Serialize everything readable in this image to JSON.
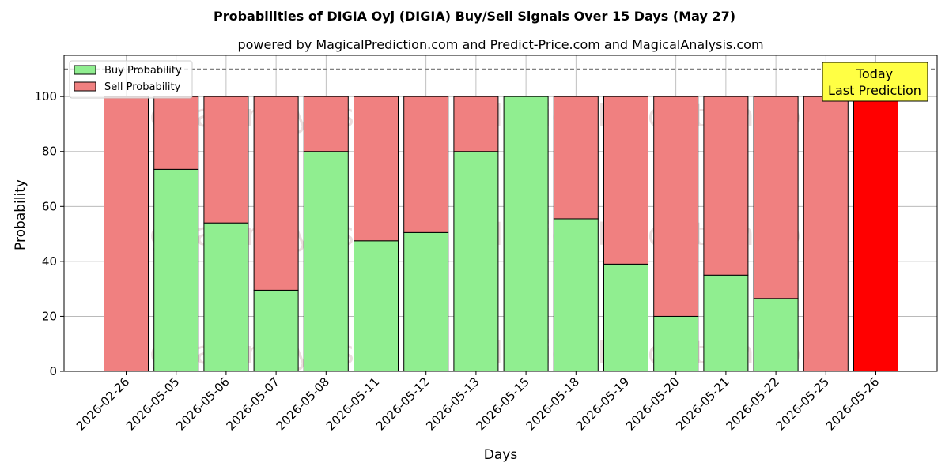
{
  "chart_data": {
    "type": "bar",
    "title": "Probabilities of DIGIA Oyj (DIGIA) Buy/Sell Signals Over 15 Days (May 27)",
    "subtitle": "powered by MagicalPrediction.com and Predict-Price.com and MagicalAnalysis.com",
    "xlabel": "Days",
    "ylabel": "Probability",
    "ylim": [
      0,
      115
    ],
    "yticks": [
      "0",
      "20",
      "40",
      "60",
      "80",
      "100"
    ],
    "reference_line": 110,
    "grid": true,
    "stacked": true,
    "legend_position": "top-left",
    "categories": [
      "2026-02-26",
      "2026-05-05",
      "2026-05-06",
      "2026-05-07",
      "2026-05-08",
      "2026-05-11",
      "2026-05-12",
      "2026-05-13",
      "2026-05-15",
      "2026-05-18",
      "2026-05-19",
      "2026-05-20",
      "2026-05-21",
      "2026-05-22",
      "2026-05-25",
      "2026-05-26"
    ],
    "series": [
      {
        "name": "Buy Probability",
        "color": "#90ee90",
        "values": [
          0,
          73.5,
          54,
          29.5,
          80,
          47.5,
          50.5,
          80,
          100,
          55.5,
          39,
          20,
          35,
          26.5,
          0,
          0
        ]
      },
      {
        "name": "Sell Probability",
        "color": "#f08080",
        "values": [
          100,
          26.5,
          46,
          70.5,
          20,
          52.5,
          49.5,
          20,
          0,
          44.5,
          61,
          80,
          65,
          73.5,
          100,
          100
        ]
      }
    ],
    "highlight": {
      "index": 15,
      "color": "#ff0000"
    },
    "annotation": {
      "line1": "Today",
      "line2": "Last Prediction",
      "color": "#ffff44"
    },
    "watermarks": [
      "MagicalAnalysis.com",
      "MagicalPrediction.com"
    ]
  }
}
